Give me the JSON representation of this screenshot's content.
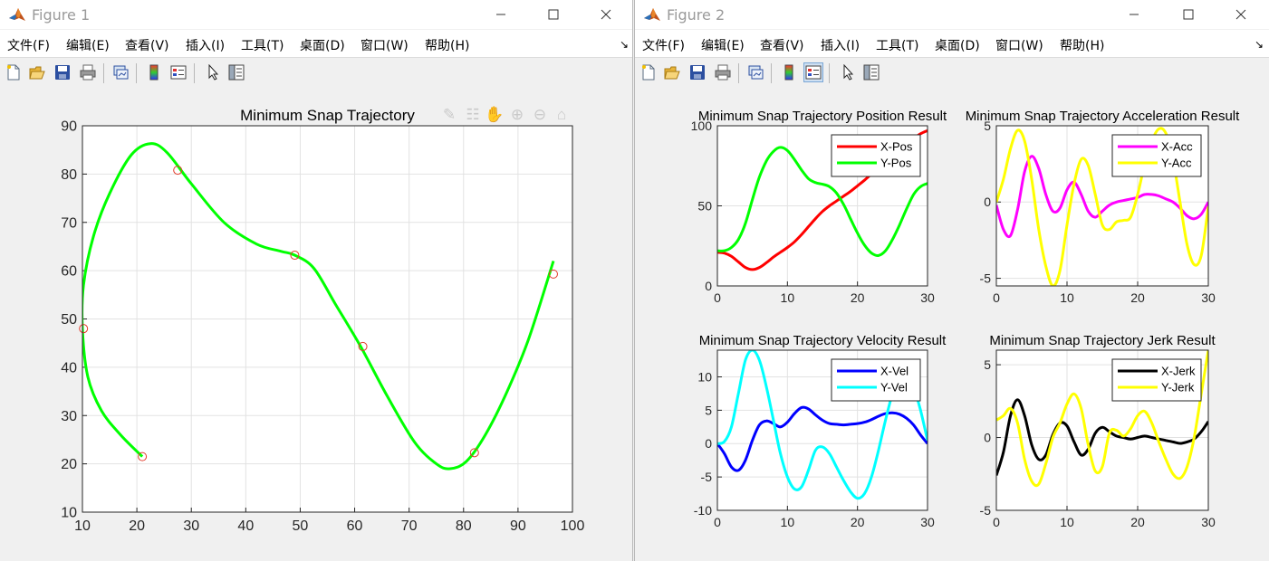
{
  "windows": [
    {
      "id": "win1",
      "title": "Figure 1",
      "menu": [
        "文件(F)",
        "编辑(E)",
        "查看(V)",
        "插入(I)",
        "工具(T)",
        "桌面(D)",
        "窗口(W)",
        "帮助(H)"
      ],
      "toolbar": [
        "new-figure",
        "open-file",
        "save",
        "print",
        "link-plot",
        "insert-colorbar",
        "insert-legend",
        "edit-plot",
        "property-inspector"
      ],
      "axes_toolbar": [
        "brush",
        "data-tips",
        "pan",
        "zoom-in",
        "zoom-out",
        "restore-view"
      ]
    },
    {
      "id": "win2",
      "title": "Figure 2",
      "menu": [
        "文件(F)",
        "编辑(E)",
        "查看(V)",
        "插入(I)",
        "工具(T)",
        "桌面(D)",
        "窗口(W)",
        "帮助(H)"
      ],
      "toolbar": [
        "new-figure",
        "open-file",
        "save",
        "print",
        "link-plot",
        "insert-colorbar",
        "insert-legend",
        "edit-plot",
        "property-inspector"
      ]
    }
  ],
  "chart_data": [
    {
      "id": "trajectory",
      "type": "line",
      "title": "Minimum Snap Trajectory",
      "xlim": [
        10,
        100
      ],
      "ylim": [
        10,
        90
      ],
      "xticks": [
        10,
        20,
        30,
        40,
        50,
        60,
        70,
        80,
        90,
        100
      ],
      "yticks": [
        10,
        20,
        30,
        40,
        50,
        60,
        70,
        80,
        90
      ],
      "grid": true,
      "series": [
        {
          "color": "#00ff00",
          "x": [
            21.0,
            17.0,
            13.5,
            11.0,
            10.0,
            10.2,
            12.0,
            15.0,
            19.0,
            22.5,
            25.5,
            30.0,
            36.0,
            42.0,
            46.5,
            49.0,
            52.5,
            56.5,
            61.0,
            66.0,
            71.0,
            75.0,
            77.5,
            80.5,
            84.0,
            88.0,
            92.0,
            96.5
          ],
          "y": [
            21.5,
            26.0,
            31.0,
            38.0,
            48.0,
            57.0,
            67.0,
            76.0,
            84.0,
            86.3,
            84.5,
            78.0,
            70.0,
            65.5,
            64.0,
            63.2,
            60.5,
            53.0,
            44.5,
            34.0,
            24.5,
            20.0,
            19.0,
            20.5,
            26.0,
            35.0,
            46.0,
            62.0
          ]
        }
      ],
      "markers": {
        "color": "#e23b2a",
        "x": [
          21.0,
          10.2,
          27.5,
          49.0,
          61.5,
          82.0,
          96.5
        ],
        "y": [
          21.5,
          48.0,
          80.8,
          63.2,
          44.3,
          22.3,
          59.3
        ]
      }
    },
    {
      "id": "position",
      "type": "line",
      "title": "Minimum Snap Trajectory Position Result",
      "xlim": [
        0,
        30
      ],
      "ylim": [
        0,
        100
      ],
      "xticks": [
        0,
        10,
        20,
        30
      ],
      "yticks": [
        0,
        50,
        100
      ],
      "grid": true,
      "legend_position": "top-right",
      "series": [
        {
          "name": "X-Pos",
          "color": "#ff0000",
          "x": [
            0,
            1,
            2,
            3,
            4,
            5,
            6,
            7,
            8,
            9,
            10,
            11,
            12,
            13,
            14,
            15,
            16,
            17,
            18,
            19,
            20,
            21,
            22,
            23,
            24,
            25,
            26,
            27,
            28,
            29,
            30
          ],
          "y": [
            21,
            20.5,
            18.5,
            15,
            11.5,
            10.2,
            11.5,
            14.5,
            18,
            21,
            24,
            27.5,
            32,
            37,
            42,
            46.5,
            50,
            53,
            56,
            59,
            62.5,
            66,
            70,
            74,
            78,
            82,
            85.5,
            89,
            92,
            95,
            97
          ]
        },
        {
          "name": "Y-Pos",
          "color": "#00ff00",
          "x": [
            0,
            1,
            2,
            3,
            4,
            5,
            6,
            7,
            8,
            9,
            10,
            11,
            12,
            13,
            14,
            15,
            16,
            17,
            18,
            19,
            20,
            21,
            22,
            23,
            24,
            25,
            26,
            27,
            28,
            29,
            30
          ],
          "y": [
            22,
            22,
            24,
            29,
            39,
            54,
            68,
            78,
            84,
            86.5,
            84.5,
            79,
            72.5,
            67,
            64.5,
            63.5,
            62,
            58,
            51,
            42,
            33,
            25.5,
            20.5,
            19,
            22,
            29,
            38,
            48,
            57,
            62,
            64
          ]
        }
      ]
    },
    {
      "id": "acceleration",
      "type": "line",
      "title": "Minimum Snap Trajectory Acceleration Result",
      "xlim": [
        0,
        30
      ],
      "ylim": [
        -5.5,
        5
      ],
      "xticks": [
        0,
        10,
        20,
        30
      ],
      "yticks": [
        -5,
        0,
        5
      ],
      "grid": true,
      "legend_position": "top-right",
      "series": [
        {
          "name": "X-Acc",
          "color": "#ff00ff",
          "x": [
            0,
            1,
            2,
            3,
            4,
            5,
            6,
            7,
            8,
            9,
            10,
            11,
            12,
            13,
            14,
            15,
            16,
            17,
            18,
            19,
            20,
            21,
            22,
            23,
            24,
            25,
            26,
            27,
            28,
            29,
            30
          ],
          "y": [
            -0.2,
            -1.8,
            -2.2,
            -0.5,
            2.0,
            3.0,
            2.2,
            0.5,
            -0.6,
            -0.4,
            0.8,
            1.3,
            0.5,
            -0.6,
            -1.0,
            -0.6,
            -0.2,
            0.0,
            0.1,
            0.2,
            0.3,
            0.5,
            0.5,
            0.4,
            0.2,
            0.0,
            -0.4,
            -0.9,
            -1.1,
            -0.8,
            0.0
          ]
        },
        {
          "name": "Y-Acc",
          "color": "#ffff00",
          "x": [
            0,
            1,
            2,
            3,
            4,
            5,
            6,
            7,
            8,
            9,
            10,
            11,
            12,
            13,
            14,
            15,
            16,
            17,
            18,
            19,
            20,
            21,
            22,
            23,
            24,
            25,
            26,
            27,
            28,
            29,
            30
          ],
          "y": [
            0.0,
            1.5,
            3.5,
            4.7,
            4.0,
            1.5,
            -1.8,
            -4.2,
            -5.5,
            -4.5,
            -1.5,
            1.2,
            2.8,
            2.4,
            0.5,
            -1.5,
            -1.8,
            -1.3,
            -1.2,
            -1.0,
            0.5,
            2.5,
            4.0,
            4.8,
            4.5,
            2.8,
            0.0,
            -2.8,
            -4.1,
            -3.5,
            -0.3
          ]
        }
      ]
    },
    {
      "id": "velocity",
      "type": "line",
      "title": "Minimum Snap Trajectory Velocity Result",
      "xlim": [
        0,
        30
      ],
      "ylim": [
        -10,
        14
      ],
      "xticks": [
        0,
        10,
        20,
        30
      ],
      "yticks": [
        -10,
        -5,
        0,
        5,
        10
      ],
      "grid": true,
      "legend_position": "top-right",
      "series": [
        {
          "name": "X-Vel",
          "color": "#0000ff",
          "x": [
            0,
            1,
            2,
            3,
            4,
            5,
            6,
            7,
            8,
            9,
            10,
            11,
            12,
            13,
            14,
            15,
            16,
            17,
            18,
            19,
            20,
            21,
            22,
            23,
            24,
            25,
            26,
            27,
            28,
            29,
            30
          ],
          "y": [
            0.0,
            -1.5,
            -3.5,
            -4.0,
            -2.5,
            0.5,
            2.8,
            3.4,
            3.0,
            2.5,
            3.2,
            4.5,
            5.4,
            5.2,
            4.3,
            3.5,
            3.0,
            2.9,
            2.8,
            2.9,
            3.0,
            3.2,
            3.6,
            4.1,
            4.5,
            4.6,
            4.4,
            3.8,
            2.8,
            1.3,
            0.0
          ]
        },
        {
          "name": "Y-Vel",
          "color": "#00ffff",
          "x": [
            0,
            1,
            2,
            3,
            4,
            5,
            6,
            7,
            8,
            9,
            10,
            11,
            12,
            13,
            14,
            15,
            16,
            17,
            18,
            19,
            20,
            21,
            22,
            23,
            24,
            25,
            26,
            27,
            28,
            29,
            30
          ],
          "y": [
            0.0,
            0.3,
            2.5,
            7.5,
            12.5,
            14.0,
            12.5,
            8.5,
            3.5,
            -1.5,
            -5.0,
            -6.8,
            -6.5,
            -4.0,
            -1.0,
            -0.5,
            -1.5,
            -3.5,
            -5.5,
            -7.2,
            -8.2,
            -7.5,
            -5.0,
            -1.0,
            3.5,
            7.5,
            10.0,
            10.5,
            8.5,
            5.0,
            0.5
          ]
        }
      ]
    },
    {
      "id": "jerk",
      "type": "line",
      "title": "Minimum Snap Trajectory Jerk Result",
      "xlim": [
        0,
        30
      ],
      "ylim": [
        -5,
        6
      ],
      "xticks": [
        0,
        10,
        20,
        30
      ],
      "yticks": [
        -5,
        0,
        5
      ],
      "grid": true,
      "legend_position": "top-right",
      "series": [
        {
          "name": "X-Jerk",
          "color": "#000000",
          "x": [
            0,
            1,
            2,
            3,
            4,
            5,
            6,
            7,
            8,
            9,
            10,
            11,
            12,
            13,
            14,
            15,
            16,
            17,
            18,
            19,
            20,
            21,
            22,
            23,
            24,
            25,
            26,
            27,
            28,
            29,
            30
          ],
          "y": [
            -2.6,
            -1.0,
            1.5,
            2.6,
            1.5,
            -0.5,
            -1.5,
            -1.2,
            0.2,
            1.0,
            0.8,
            -0.3,
            -1.2,
            -0.8,
            0.3,
            0.7,
            0.4,
            0.1,
            0.0,
            -0.1,
            0.0,
            0.1,
            0.0,
            -0.1,
            -0.2,
            -0.3,
            -0.4,
            -0.3,
            -0.1,
            0.4,
            1.1
          ]
        },
        {
          "name": "Y-Jerk",
          "color": "#ffff00",
          "x": [
            0,
            1,
            2,
            3,
            4,
            5,
            6,
            7,
            8,
            9,
            10,
            11,
            12,
            13,
            14,
            15,
            16,
            17,
            18,
            19,
            20,
            21,
            22,
            23,
            24,
            25,
            26,
            27,
            28,
            29,
            30
          ],
          "y": [
            1.2,
            1.5,
            2.0,
            1.0,
            -1.5,
            -3.0,
            -3.2,
            -1.8,
            0.0,
            1.0,
            2.3,
            3.0,
            2.0,
            -0.5,
            -2.3,
            -2.0,
            0.3,
            0.5,
            0.1,
            0.6,
            1.5,
            1.8,
            1.0,
            -0.3,
            -1.5,
            -2.5,
            -2.8,
            -2.0,
            0.0,
            3.0,
            6.0
          ]
        }
      ]
    }
  ]
}
